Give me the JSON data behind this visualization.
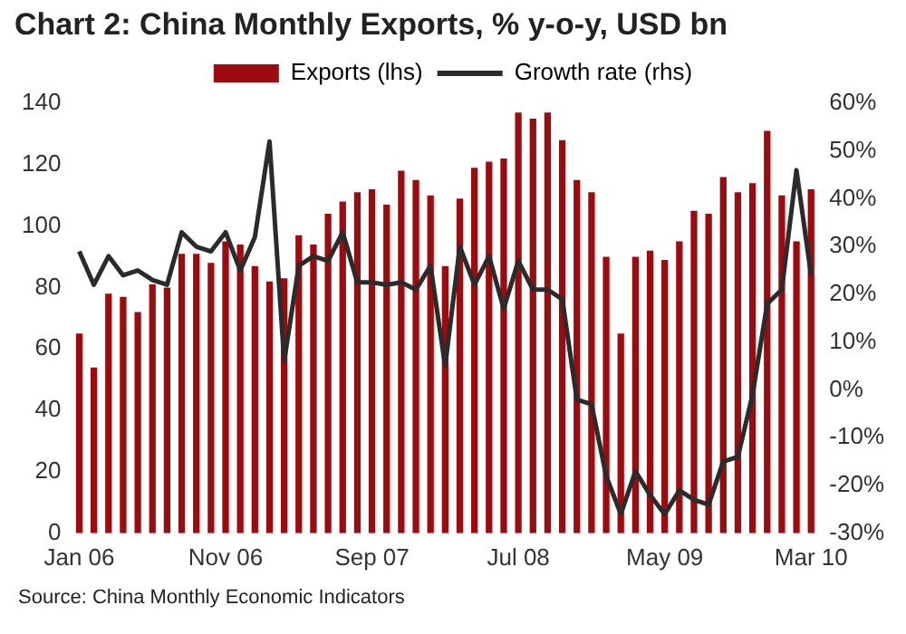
{
  "chart_data": {
    "type": "bar",
    "title": "Chart 2: China Monthly Exports, % y-o-y, USD bn",
    "categories": [
      "Jan 06",
      null,
      null,
      null,
      null,
      null,
      null,
      null,
      null,
      null,
      "Nov 06",
      null,
      null,
      null,
      null,
      null,
      null,
      null,
      null,
      null,
      "Sep 07",
      null,
      null,
      null,
      null,
      null,
      null,
      null,
      null,
      null,
      "Jul 08",
      null,
      null,
      null,
      null,
      null,
      null,
      null,
      null,
      null,
      "May 09",
      null,
      null,
      null,
      null,
      null,
      null,
      null,
      null,
      null,
      "Mar 10"
    ],
    "series": [
      {
        "name": "Exports (lhs)",
        "color": "#9e0b0f",
        "values": [
          65,
          54,
          78,
          77,
          72,
          81,
          80,
          91,
          91,
          88,
          95,
          94,
          87,
          82,
          83,
          97,
          94,
          104,
          108,
          111,
          112,
          107,
          118,
          115,
          110,
          87,
          109,
          119,
          121,
          122,
          137,
          135,
          137,
          128,
          115,
          111,
          90,
          65,
          90,
          92,
          89,
          95,
          105,
          104,
          116,
          111,
          114,
          131,
          110,
          95,
          112
        ]
      },
      {
        "name": "Growth rate (rhs)",
        "type": "line",
        "axis": "y2",
        "color": "#2b2b2b",
        "values": [
          29,
          22,
          28,
          24,
          25,
          23,
          22,
          33,
          30,
          29,
          33,
          25,
          32,
          52,
          6,
          26,
          28,
          27,
          33,
          22.5,
          22.5,
          22,
          22.5,
          21,
          26,
          5,
          30,
          22,
          28,
          17,
          27,
          21,
          21,
          19,
          -2,
          -3,
          -18,
          -26,
          -17,
          -22,
          -26,
          -21,
          -23,
          -24,
          -15,
          -14,
          -1,
          18,
          21,
          46,
          24
        ]
      }
    ],
    "ylim": [
      0,
      140
    ],
    "yticks": [
      0,
      20,
      40,
      60,
      80,
      100,
      120,
      140
    ],
    "y2lim": [
      -30,
      60
    ],
    "y2ticks": [
      {
        "value": -30,
        "label": "-30%"
      },
      {
        "value": -20,
        "label": "-20%"
      },
      {
        "value": -10,
        "label": "-10%"
      },
      {
        "value": 0,
        "label": "0%"
      },
      {
        "value": 10,
        "label": "10%"
      },
      {
        "value": 20,
        "label": "20%"
      },
      {
        "value": 30,
        "label": "30%"
      },
      {
        "value": 40,
        "label": "40%"
      },
      {
        "value": 50,
        "label": "50%"
      },
      {
        "value": 60,
        "label": "60%"
      }
    ],
    "grid": false,
    "legend": "top",
    "marker": "none",
    "line_style": "solid",
    "annotations": [
      "Source: China Monthly Economic Indicators"
    ]
  }
}
